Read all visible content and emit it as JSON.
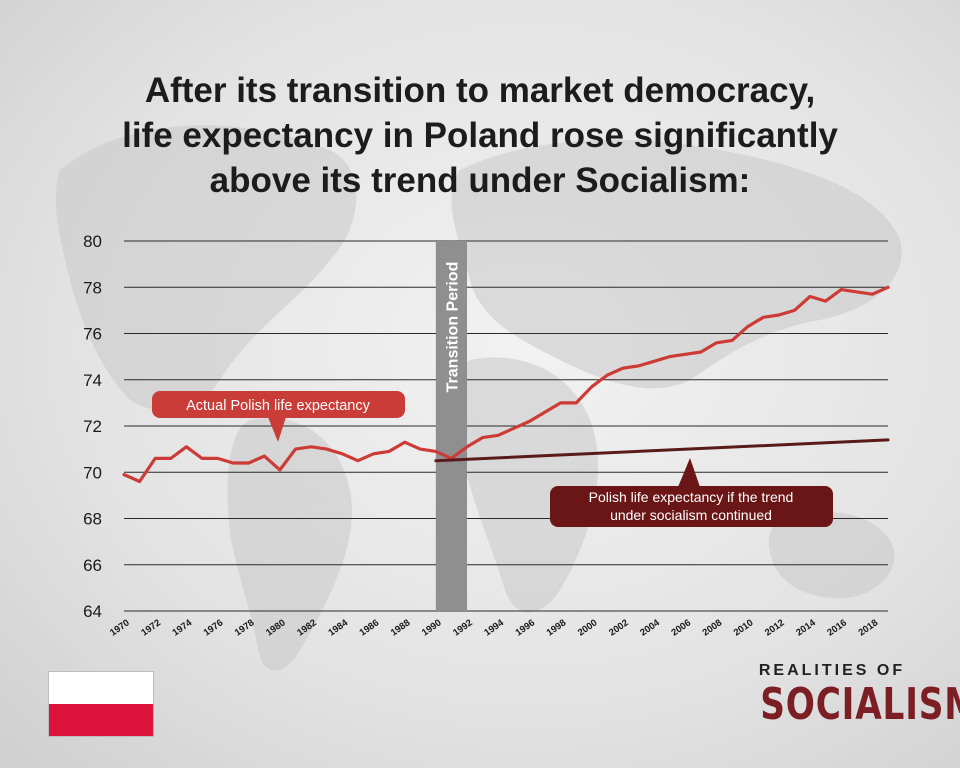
{
  "title": {
    "line1": "After its transition to market democracy,",
    "line2": "life expectancy in Poland rose significantly",
    "line3_pre": "above its trend under ",
    "line3_strong": "Socialism:"
  },
  "brand": {
    "top": "REALITIES OF",
    "main": "SOCIALISM"
  },
  "colors": {
    "actual_line": "#cc3b36",
    "trend_line": "#5a1a1a",
    "transition_band": "#8f8f8f",
    "trend_callout": "#6b1616",
    "actual_callout": "#c93c37"
  },
  "chart_data": {
    "type": "line",
    "title": "After its transition to market democracy, life expectancy in Poland rose significantly above its trend under Socialism:",
    "xlabel": "",
    "ylabel": "",
    "ylim": [
      64,
      80
    ],
    "xlim": [
      1970,
      2019
    ],
    "y_ticks": [
      "80",
      "78",
      "76",
      "74",
      "72",
      "70",
      "68",
      "66",
      "64"
    ],
    "x_ticks": [
      "1970",
      "1972",
      "1974",
      "1976",
      "1978",
      "1980",
      "1982",
      "1984",
      "1986",
      "1988",
      "1990",
      "1992",
      "1994",
      "1996",
      "1998",
      "2000",
      "2002",
      "2004",
      "2006",
      "2008",
      "2010",
      "2012",
      "2014",
      "2016",
      "2018"
    ],
    "grid": true,
    "transition_band": {
      "label": "Transition Period",
      "from": 1990,
      "to": 1992
    },
    "series": [
      {
        "name": "Actual Polish life expectancy",
        "x": [
          1970,
          1971,
          1972,
          1973,
          1974,
          1975,
          1976,
          1977,
          1978,
          1979,
          1980,
          1981,
          1982,
          1983,
          1984,
          1985,
          1986,
          1987,
          1988,
          1989,
          1990,
          1991,
          1992,
          1993,
          1994,
          1995,
          1996,
          1997,
          1998,
          1999,
          2000,
          2001,
          2002,
          2003,
          2004,
          2005,
          2006,
          2007,
          2008,
          2009,
          2010,
          2011,
          2012,
          2013,
          2014,
          2015,
          2016,
          2017,
          2018,
          2019
        ],
        "values": [
          69.9,
          69.6,
          70.6,
          70.6,
          71.1,
          70.6,
          70.6,
          70.4,
          70.4,
          70.7,
          70.1,
          71.0,
          71.1,
          71.0,
          70.8,
          70.5,
          70.8,
          70.9,
          71.3,
          71.0,
          70.9,
          70.6,
          71.1,
          71.5,
          71.6,
          71.9,
          72.2,
          72.6,
          73.0,
          73.0,
          73.7,
          74.2,
          74.5,
          74.6,
          74.8,
          75.0,
          75.1,
          75.2,
          75.6,
          75.7,
          76.3,
          76.7,
          76.8,
          77.0,
          77.6,
          77.4,
          77.9,
          77.8,
          77.7,
          78.0
        ]
      },
      {
        "name": "Polish life expectancy if the trend under socialism continued",
        "x": [
          1990,
          2019
        ],
        "values": [
          70.5,
          71.4
        ]
      }
    ],
    "annotations": [
      {
        "text": "Actual Polish life expectancy",
        "series": 0
      },
      {
        "text": "Polish life expectancy if the trend under socialism continued",
        "line1": "Polish life expectancy if the trend",
        "line2": "under socialism continued",
        "series": 1
      }
    ]
  }
}
